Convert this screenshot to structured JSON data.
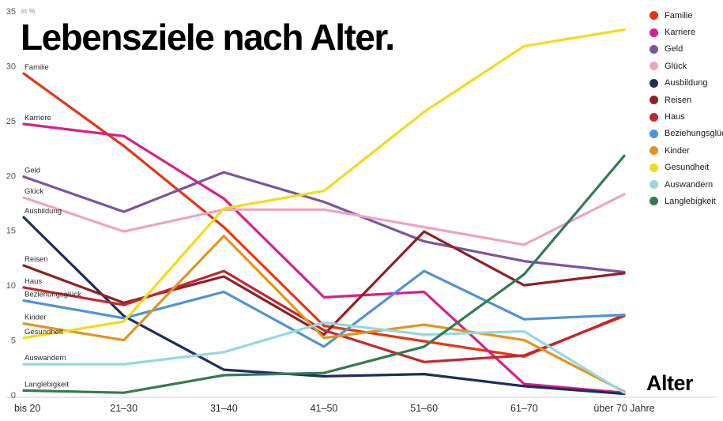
{
  "title": "Lebensziele nach Alter.",
  "x_axis_label": "Alter",
  "y_axis": {
    "unit_label": "in %",
    "ticks": [
      0,
      5,
      10,
      15,
      20,
      25,
      30,
      35
    ]
  },
  "chart_data": {
    "type": "line",
    "title": "Lebensziele nach Alter.",
    "xlabel": "Alter",
    "ylabel": "in %",
    "ylim": [
      0,
      35
    ],
    "grid": false,
    "legend_position": "top-right",
    "categories": [
      "bis 20",
      "21–30",
      "31–40",
      "41–50",
      "51–60",
      "61–70",
      "über 70 Jahre"
    ],
    "series": [
      {
        "name": "Familie",
        "color": "#e53517",
        "values": [
          29.3,
          22.7,
          15.3,
          6.3,
          4.9,
          3.5,
          7.3
        ]
      },
      {
        "name": "Karriere",
        "color": "#d91f87",
        "values": [
          24.7,
          23.6,
          17.9,
          8.9,
          9.4,
          1.0,
          0.2
        ]
      },
      {
        "name": "Geld",
        "color": "#7a559e",
        "values": [
          19.9,
          16.7,
          20.3,
          17.6,
          14.0,
          12.2,
          11.2
        ]
      },
      {
        "name": "Glück",
        "color": "#f0a2c2",
        "values": [
          18.0,
          14.9,
          16.9,
          16.9,
          15.3,
          13.7,
          18.3
        ]
      },
      {
        "name": "Ausbildung",
        "color": "#1f2d5c",
        "values": [
          16.2,
          7.2,
          2.3,
          1.7,
          1.9,
          0.8,
          0.1
        ]
      },
      {
        "name": "Reisen",
        "color": "#8e1f24",
        "values": [
          11.8,
          8.4,
          10.8,
          5.5,
          14.9,
          10.0,
          11.1
        ]
      },
      {
        "name": "Haus",
        "color": "#c2272d",
        "values": [
          9.8,
          8.2,
          11.3,
          5.9,
          3.0,
          3.6,
          7.2
        ]
      },
      {
        "name": "Beziehungsglück",
        "color": "#4e93d4",
        "values": [
          8.6,
          7.0,
          9.4,
          4.4,
          11.3,
          6.9,
          7.3
        ]
      },
      {
        "name": "Kinder",
        "color": "#e2941f",
        "values": [
          6.5,
          5.0,
          14.5,
          5.2,
          6.4,
          5.0,
          0.3
        ]
      },
      {
        "name": "Gesundheit",
        "color": "#f6da1a",
        "values": [
          5.2,
          6.7,
          17.0,
          18.6,
          25.8,
          31.8,
          33.3
        ]
      },
      {
        "name": "Auswandern",
        "color": "#93d9de",
        "values": [
          2.8,
          2.8,
          3.9,
          6.6,
          5.5,
          5.8,
          0.2
        ]
      },
      {
        "name": "Langlebigkeit",
        "color": "#337a54",
        "values": [
          0.4,
          0.2,
          1.8,
          2.0,
          4.4,
          11.0,
          21.8
        ]
      }
    ]
  }
}
